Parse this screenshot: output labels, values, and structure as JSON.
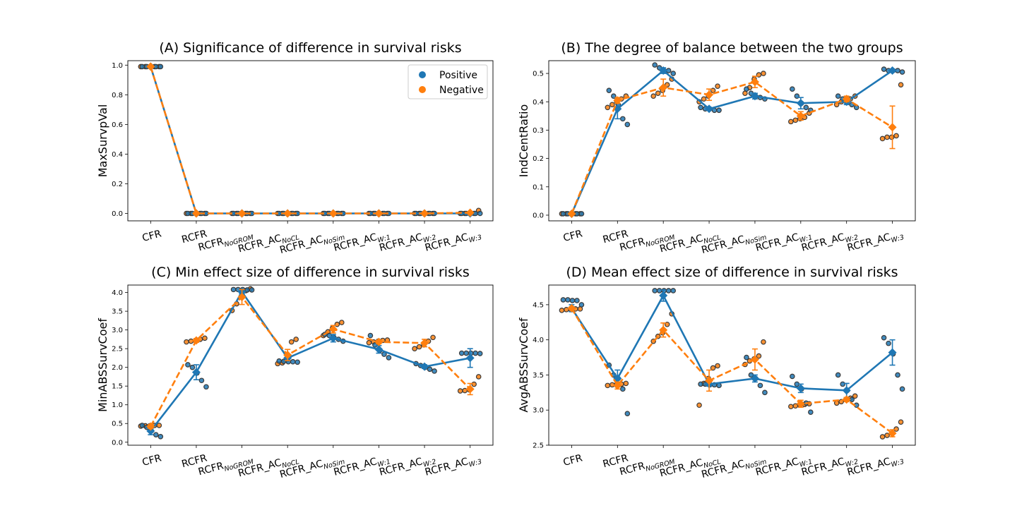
{
  "categories": [
    "CFR",
    "RCFR",
    "RCFR",
    "RCFR_AC",
    "RCFR_AC",
    "RCFR_AC",
    "RCFR_AC",
    "RCFR_AC"
  ],
  "category_subscripts": [
    "",
    "",
    "NoGROM",
    "NoCL",
    "NoSim",
    "W:1",
    "W:2",
    "W:3"
  ],
  "colors": {
    "positive": "#1f77b4",
    "negative": "#ff7f0e",
    "swarm_edge": "#3a3a3a"
  },
  "chart_data": [
    {
      "type": "line",
      "title": "(A) Significance of difference in survival risks",
      "xlabel": "",
      "ylabel": "MaxSurvpVal",
      "ylim": [
        -0.05,
        1.03
      ],
      "yticks": [
        0.0,
        0.2,
        0.4,
        0.6,
        0.8,
        1.0
      ],
      "ytick_labels": [
        "0.0",
        "0.2",
        "0.4",
        "0.6",
        "0.8",
        "1.0"
      ],
      "legend": {
        "placement": "top-right",
        "entries": [
          "Positive",
          "Negative"
        ]
      },
      "series": [
        {
          "name": "Positive",
          "values": [
            0.99,
            0.0,
            0.0,
            0.0,
            0.0,
            0.0,
            0.0,
            0.0
          ],
          "err": [
            0,
            0,
            0,
            0,
            0,
            0,
            0,
            0
          ]
        },
        {
          "name": "Negative",
          "values": [
            0.99,
            0.0,
            0.0,
            0.0,
            0.0,
            0.0,
            0.0,
            0.005
          ],
          "err": [
            0,
            0,
            0,
            0,
            0,
            0,
            0,
            0.008
          ]
        }
      ],
      "points": [
        {
          "pos": [
            0.99,
            0.99,
            0.99,
            0.99,
            0.99
          ],
          "neg": [
            0.99,
            0.99,
            0.99,
            0.99,
            0.99
          ]
        },
        {
          "pos": [
            0,
            0,
            0,
            0,
            0
          ],
          "neg": [
            0,
            0,
            0,
            0,
            0
          ]
        },
        {
          "pos": [
            0,
            0,
            0,
            0,
            0
          ],
          "neg": [
            0,
            0,
            0,
            0,
            0
          ]
        },
        {
          "pos": [
            0,
            0,
            0,
            0,
            0
          ],
          "neg": [
            0,
            0,
            0,
            0,
            0
          ]
        },
        {
          "pos": [
            0,
            0,
            0,
            0,
            0
          ],
          "neg": [
            0,
            0,
            0,
            0,
            0
          ]
        },
        {
          "pos": [
            0,
            0,
            0,
            0,
            0
          ],
          "neg": [
            0,
            0,
            0,
            0,
            0
          ]
        },
        {
          "pos": [
            0,
            0,
            0,
            0,
            0
          ],
          "neg": [
            0,
            0,
            0,
            0,
            0
          ]
        },
        {
          "pos": [
            0,
            0,
            0,
            0,
            0
          ],
          "neg": [
            0.02,
            0,
            0,
            0,
            0
          ]
        }
      ]
    },
    {
      "type": "line",
      "title": "(B) The degree of balance between the two groups",
      "xlabel": "",
      "ylabel": "IndCentRatio",
      "ylim": [
        -0.02,
        0.545
      ],
      "yticks": [
        0.0,
        0.1,
        0.2,
        0.3,
        0.4,
        0.5
      ],
      "ytick_labels": [
        "0.0",
        "0.1",
        "0.2",
        "0.3",
        "0.4",
        "0.5"
      ],
      "legend": null,
      "series": [
        {
          "name": "Positive",
          "values": [
            0.005,
            0.375,
            0.51,
            0.375,
            0.42,
            0.395,
            0.4,
            0.51
          ],
          "err": [
            0,
            0.035,
            0.01,
            0.005,
            0.01,
            0.02,
            0.01,
            0.005
          ]
        },
        {
          "name": "Negative",
          "values": [
            0.005,
            0.405,
            0.45,
            0.425,
            0.47,
            0.35,
            0.41,
            0.31
          ],
          "err": [
            0,
            0.01,
            0.03,
            0.02,
            0.02,
            0.015,
            0.01,
            0.075
          ]
        }
      ],
      "points": [
        {
          "pos": [
            0.005,
            0.005,
            0.005,
            0.005,
            0.005
          ],
          "neg": [
            0.005,
            0.005,
            0.005,
            0.005,
            0.005
          ]
        },
        {
          "pos": [
            0.44,
            0.42,
            0.39,
            0.34,
            0.32
          ],
          "neg": [
            0.42,
            0.41,
            0.4,
            0.39,
            0.38
          ]
        },
        {
          "pos": [
            0.53,
            0.52,
            0.51,
            0.51,
            0.5
          ],
          "neg": [
            0.48,
            0.46,
            0.44,
            0.43,
            0.42
          ]
        },
        {
          "pos": [
            0.38,
            0.375,
            0.375,
            0.37,
            0.37
          ],
          "neg": [
            0.455,
            0.44,
            0.42,
            0.41,
            0.4
          ]
        },
        {
          "pos": [
            0.445,
            0.43,
            0.42,
            0.415,
            0.41
          ],
          "neg": [
            0.5,
            0.495,
            0.48,
            0.45,
            0.43
          ]
        },
        {
          "pos": [
            0.445,
            0.42,
            0.395,
            0.38,
            0.37
          ],
          "neg": [
            0.36,
            0.345,
            0.34,
            0.335,
            0.33
          ]
        },
        {
          "pos": [
            0.42,
            0.41,
            0.4,
            0.39,
            0.38
          ],
          "neg": [
            0.42,
            0.41,
            0.405,
            0.4,
            0.39
          ]
        },
        {
          "pos": [
            0.515,
            0.51,
            0.51,
            0.51,
            0.505
          ],
          "neg": [
            0.46,
            0.28,
            0.275,
            0.275,
            0.27
          ]
        }
      ]
    },
    {
      "type": "line",
      "title": "(C) Min effect size of difference in survival risks",
      "xlabel": "",
      "ylabel": "MinABSSurvCoef",
      "ylim": [
        -0.08,
        4.2
      ],
      "yticks": [
        0.0,
        0.5,
        1.0,
        1.5,
        2.0,
        2.5,
        3.0,
        3.5,
        4.0
      ],
      "ytick_labels": [
        "0.0",
        "0.5",
        "1.0",
        "1.5",
        "2.0",
        "2.5",
        "3.0",
        "3.5",
        "4.0"
      ],
      "legend": null,
      "series": [
        {
          "name": "Positive",
          "values": [
            0.3,
            1.87,
            4.02,
            2.25,
            2.78,
            2.48,
            2.02,
            2.25
          ],
          "err": [
            0.1,
            0.2,
            0.05,
            0.05,
            0.1,
            0.1,
            0.05,
            0.25
          ]
        },
        {
          "name": "Negative",
          "values": [
            0.42,
            2.72,
            3.88,
            2.33,
            3.02,
            2.68,
            2.65,
            1.42
          ],
          "err": [
            0.05,
            0.05,
            0.2,
            0.15,
            0.1,
            0.05,
            0.1,
            0.15
          ]
        }
      ],
      "points": [
        {
          "pos": [
            0.45,
            0.4,
            0.3,
            0.2,
            0.15
          ],
          "neg": [
            0.45,
            0.45,
            0.44,
            0.44,
            0.43
          ]
        },
        {
          "pos": [
            2.07,
            2.0,
            1.85,
            1.65,
            1.48
          ],
          "neg": [
            2.78,
            2.75,
            2.72,
            2.7,
            2.68
          ]
        },
        {
          "pos": [
            4.08,
            4.08,
            4.08,
            4.07,
            4.07
          ],
          "neg": [
            4.1,
            4.05,
            3.9,
            3.7,
            3.52
          ]
        },
        {
          "pos": [
            2.17,
            2.16,
            2.15,
            2.15,
            2.14
          ],
          "neg": [
            2.75,
            2.68,
            2.2,
            2.12,
            2.1
          ]
        },
        {
          "pos": [
            2.88,
            2.85,
            2.8,
            2.75,
            2.7
          ],
          "neg": [
            3.2,
            3.15,
            3.05,
            2.95,
            2.85
          ]
        },
        {
          "pos": [
            2.85,
            2.6,
            2.45,
            2.35,
            2.26
          ],
          "neg": [
            2.73,
            2.72,
            2.7,
            2.68,
            2.66
          ]
        },
        {
          "pos": [
            2.1,
            2.05,
            2.0,
            1.95,
            1.9
          ],
          "neg": [
            2.8,
            2.7,
            2.6,
            2.55,
            2.5
          ]
        },
        {
          "pos": [
            2.38,
            2.38,
            2.38,
            2.38,
            2.37
          ],
          "neg": [
            1.75,
            1.55,
            1.4,
            1.38,
            1.37
          ]
        }
      ]
    },
    {
      "type": "line",
      "title": "(D) Mean effect size of difference in survival risks",
      "xlabel": "",
      "ylabel": "AvgABSSurvCoef",
      "ylim": [
        2.5,
        4.78
      ],
      "yticks": [
        2.5,
        3.0,
        3.5,
        4.0,
        4.5
      ],
      "ytick_labels": [
        "2.5",
        "3.0",
        "3.5",
        "4.0",
        "4.5"
      ],
      "legend": null,
      "series": [
        {
          "name": "Positive",
          "values": [
            4.45,
            3.45,
            4.63,
            3.37,
            3.45,
            3.31,
            3.28,
            3.82
          ],
          "err": [
            0.05,
            0.12,
            0.08,
            0.03,
            0.05,
            0.06,
            0.1,
            0.18
          ]
        },
        {
          "name": "Negative",
          "values": [
            4.45,
            3.35,
            4.14,
            3.42,
            3.72,
            3.09,
            3.15,
            2.67
          ],
          "err": [
            0.02,
            0.05,
            0.1,
            0.15,
            0.15,
            0.05,
            0.03,
            0.05
          ]
        }
      ],
      "points": [
        {
          "pos": [
            4.57,
            4.57,
            4.56,
            4.56,
            4.5
          ],
          "neg": [
            4.44,
            4.44,
            4.43,
            4.43,
            4.42
          ]
        },
        {
          "pos": [
            3.64,
            3.5,
            3.45,
            3.3,
            2.95
          ],
          "neg": [
            3.38,
            3.37,
            3.37,
            3.36,
            3.35
          ]
        },
        {
          "pos": [
            4.7,
            4.7,
            4.7,
            4.7,
            4.7
          ],
          "neg": [
            4.37,
            4.22,
            4.1,
            4.05,
            3.98
          ]
        },
        {
          "pos": [
            3.37,
            3.37,
            3.36,
            3.36,
            3.35
          ],
          "neg": [
            3.63,
            3.6,
            3.45,
            3.38,
            3.07
          ]
        },
        {
          "pos": [
            3.75,
            3.5,
            3.45,
            3.35,
            3.25
          ],
          "neg": [
            3.97,
            3.77,
            3.73,
            3.7,
            3.65
          ]
        },
        {
          "pos": [
            3.48,
            3.37,
            3.3,
            3.1,
            2.97
          ],
          "neg": [
            3.09,
            3.08,
            3.07,
            3.06,
            3.05
          ]
        },
        {
          "pos": [
            3.5,
            3.37,
            3.28,
            3.15,
            3.07
          ],
          "neg": [
            3.2,
            3.17,
            3.15,
            3.12,
            3.1
          ]
        },
        {
          "pos": [
            4.03,
            3.95,
            3.8,
            3.5,
            3.3
          ],
          "neg": [
            2.83,
            2.73,
            2.67,
            2.64,
            2.62
          ]
        }
      ]
    }
  ]
}
